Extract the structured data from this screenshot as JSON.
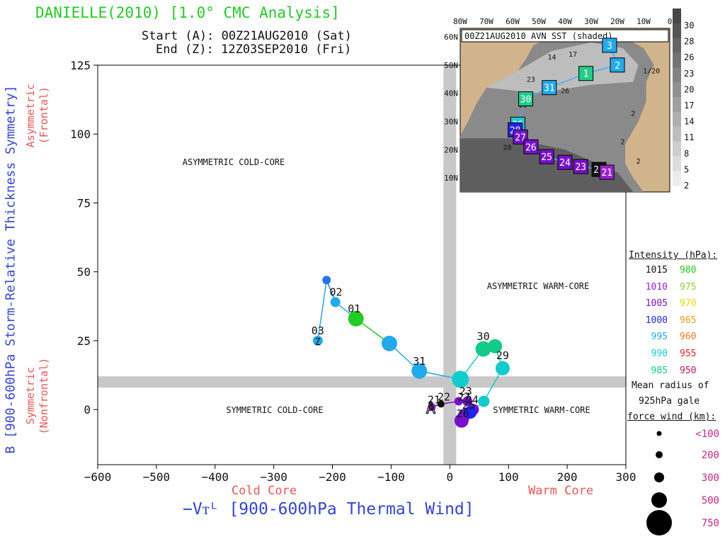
{
  "title": "DANIELLE(2010) [1.0° CMC Analysis]",
  "start_line": "Start (A): 00Z21AUG2010 (Sat)",
  "end_line": "End (Z): 12Z03SEP2010 (Fri)",
  "ylabel": "B [900-600hPa Storm-Relative Thickness Symmetry]",
  "xlabel": "−Vᴛᴸ [900-600hPa Thermal Wind]",
  "y_top_label": [
    "Asymmetric",
    "(Frontal)"
  ],
  "y_bottom_label": [
    "Symmetric",
    "(Nonfrontal)"
  ],
  "x_left_label": "Cold Core",
  "x_right_label": "Warm Core",
  "quadrants": {
    "ul": "ASYMMETRIC COLD-CORE",
    "ur": "ASYMMETRIC WARM-CORE",
    "ll": "SYMMETRIC COLD-CORE",
    "lr": "SYMMETRIC WARM-CORE"
  },
  "legend": {
    "title": "Intensity (hPa):",
    "rows": [
      {
        "a": "1015",
        "ac": "#111111",
        "b": "980",
        "bc": "#22cc22"
      },
      {
        "a": "1010",
        "ac": "#9922cc",
        "b": "975",
        "bc": "#99cc33"
      },
      {
        "a": "1005",
        "ac": "#7711cc",
        "b": "970",
        "bc": "#dddd00"
      },
      {
        "a": "1000",
        "ac": "#2222ee",
        "b": "965",
        "bc": "#ee9922"
      },
      {
        "a": "995",
        "ac": "#22aaee",
        "b": "960",
        "bc": "#ee7722"
      },
      {
        "a": "990",
        "ac": "#11cccc",
        "b": "955",
        "bc": "#ee2222"
      },
      {
        "a": "985",
        "ac": "#11cc88",
        "b": "950",
        "bc": "#cc1166"
      }
    ],
    "radius_title": [
      "Mean radius of",
      "925hPa gale",
      "force wind (km):"
    ],
    "radius_rows": [
      "<100",
      "200",
      "300",
      "500",
      "750"
    ],
    "radius_color": "#cc2288"
  },
  "inset": {
    "title": "00Z21AUG2010 AVN SST (shaded)",
    "lon_labels": [
      "80W",
      "70W",
      "60W",
      "50W",
      "40W",
      "30W",
      "20W",
      "10W",
      "0"
    ],
    "lat_labels": [
      "60N",
      "50N",
      "40N",
      "30N",
      "20N",
      "10N"
    ],
    "colorbar_labels": [
      "30",
      "28",
      "26",
      "23",
      "20",
      "17",
      "14",
      "11",
      "8",
      "5",
      "2"
    ],
    "contour_labels": [
      "14",
      "17",
      "23",
      "26",
      "28",
      "1/20",
      "2",
      "2",
      "2",
      "28"
    ],
    "track": [
      {
        "lon": 23,
        "lat": 57,
        "label": "3",
        "color": "#22aaee"
      },
      {
        "lon": 20,
        "lat": 50,
        "label": "2",
        "color": "#22aaee"
      },
      {
        "lon": 32,
        "lat": 47,
        "label": "1",
        "color": "#22cc88"
      },
      {
        "lon": 46,
        "lat": 42,
        "label": "31",
        "color": "#22aaee"
      },
      {
        "lon": 55,
        "lat": 38,
        "label": "30",
        "color": "#22cc88"
      },
      {
        "lon": 58,
        "lat": 29,
        "label": "29",
        "color": "#22cccc"
      },
      {
        "lon": 59,
        "lat": 27,
        "label": "28",
        "color": "#2222ee"
      },
      {
        "lon": 57,
        "lat": 24.5,
        "label": "27",
        "color": "#7711cc"
      },
      {
        "lon": 53,
        "lat": 21,
        "label": "26",
        "color": "#7711cc"
      },
      {
        "lon": 47,
        "lat": 17.5,
        "label": "25",
        "color": "#7711cc"
      },
      {
        "lon": 40,
        "lat": 15.5,
        "label": "24",
        "color": "#7711cc"
      },
      {
        "lon": 34,
        "lat": 14,
        "label": "23",
        "color": "#7711cc"
      },
      {
        "lon": 27,
        "lat": 13,
        "label": "22",
        "color": "#111111"
      },
      {
        "lon": 24,
        "lat": 12,
        "label": "21",
        "color": "#9922cc"
      }
    ]
  },
  "chart_data": {
    "type": "scatter",
    "title": "DANIELLE(2010) [1.0° CMC Analysis]",
    "xlabel": "−Vᴛᴸ [900-600hPa Thermal Wind]",
    "ylabel": "B [900-600hPa Storm-Relative Thickness Symmetry]",
    "xlim": [
      -600,
      300
    ],
    "ylim": [
      -20,
      125
    ],
    "xticks": [
      -600,
      -500,
      -400,
      -300,
      -200,
      -100,
      0,
      100,
      200,
      300
    ],
    "yticks": [
      0,
      25,
      50,
      75,
      100,
      125
    ],
    "xtick_labels": [
      "−600",
      "−500",
      "−400",
      "−300",
      "−200",
      "−100",
      "0",
      "100",
      "200",
      "300"
    ],
    "ytick_labels": [
      "0",
      "25",
      "50",
      "75",
      "100",
      "125"
    ],
    "threshold_x": 0,
    "threshold_y": 10,
    "track": [
      {
        "x": -30,
        "y": 1,
        "r": 5,
        "color": "#9922cc"
      },
      {
        "x": -15,
        "y": 2,
        "r": 5,
        "color": "#111111"
      },
      {
        "x": 15,
        "y": 3,
        "r": 6,
        "color": "#7711cc"
      },
      {
        "x": 30,
        "y": 3,
        "r": 7,
        "color": "#7711cc"
      },
      {
        "x": 40,
        "y": 0,
        "r": 8,
        "color": "#7711cc"
      },
      {
        "x": 25,
        "y": -2,
        "r": 9,
        "color": "#7711cc"
      },
      {
        "x": 20,
        "y": -4,
        "r": 10,
        "color": "#7711cc"
      },
      {
        "x": 35,
        "y": -1,
        "r": 9,
        "color": "#2222ee"
      },
      {
        "x": 58,
        "y": 3,
        "r": 8,
        "color": "#11cccc"
      },
      {
        "x": 90,
        "y": 15,
        "r": 10,
        "color": "#11cccc"
      },
      {
        "x": 77,
        "y": 23,
        "r": 10,
        "color": "#11cc88"
      },
      {
        "x": 57,
        "y": 22,
        "r": 11,
        "color": "#11cc88"
      },
      {
        "x": 18,
        "y": 11,
        "r": 12,
        "color": "#11cccc"
      },
      {
        "x": -52,
        "y": 14,
        "r": 11,
        "color": "#22aaee"
      },
      {
        "x": -103,
        "y": 24,
        "r": 11,
        "color": "#22aaee"
      },
      {
        "x": -160,
        "y": 33,
        "r": 11,
        "color": "#22cc22"
      },
      {
        "x": -195,
        "y": 39,
        "r": 7,
        "color": "#22aaee"
      },
      {
        "x": -210,
        "y": 47,
        "r": 6,
        "color": "#2277ee"
      },
      {
        "x": -225,
        "y": 25,
        "r": 7,
        "color": "#22aaee"
      }
    ],
    "day_labels": [
      {
        "x": -27,
        "y": 1,
        "text": "21"
      },
      {
        "x": -10,
        "y": 2,
        "text": "22"
      },
      {
        "x": 27,
        "y": 4,
        "text": "23"
      },
      {
        "x": 38,
        "y": 1,
        "text": "24"
      },
      {
        "x": 32,
        "y": -1,
        "text": "25"
      },
      {
        "x": 22,
        "y": -4,
        "text": "26"
      },
      {
        "x": 24,
        "y": 2,
        "text": "27"
      },
      {
        "x": 90,
        "y": 17,
        "text": "29"
      },
      {
        "x": 57,
        "y": 24,
        "text": "30"
      },
      {
        "x": -52,
        "y": 15,
        "text": "31"
      },
      {
        "x": -163,
        "y": 34,
        "text": "01"
      },
      {
        "x": -194,
        "y": 40,
        "text": "02"
      },
      {
        "x": -225,
        "y": 26,
        "text": "03"
      }
    ],
    "start_marker": "A",
    "end_marker": "Z"
  }
}
